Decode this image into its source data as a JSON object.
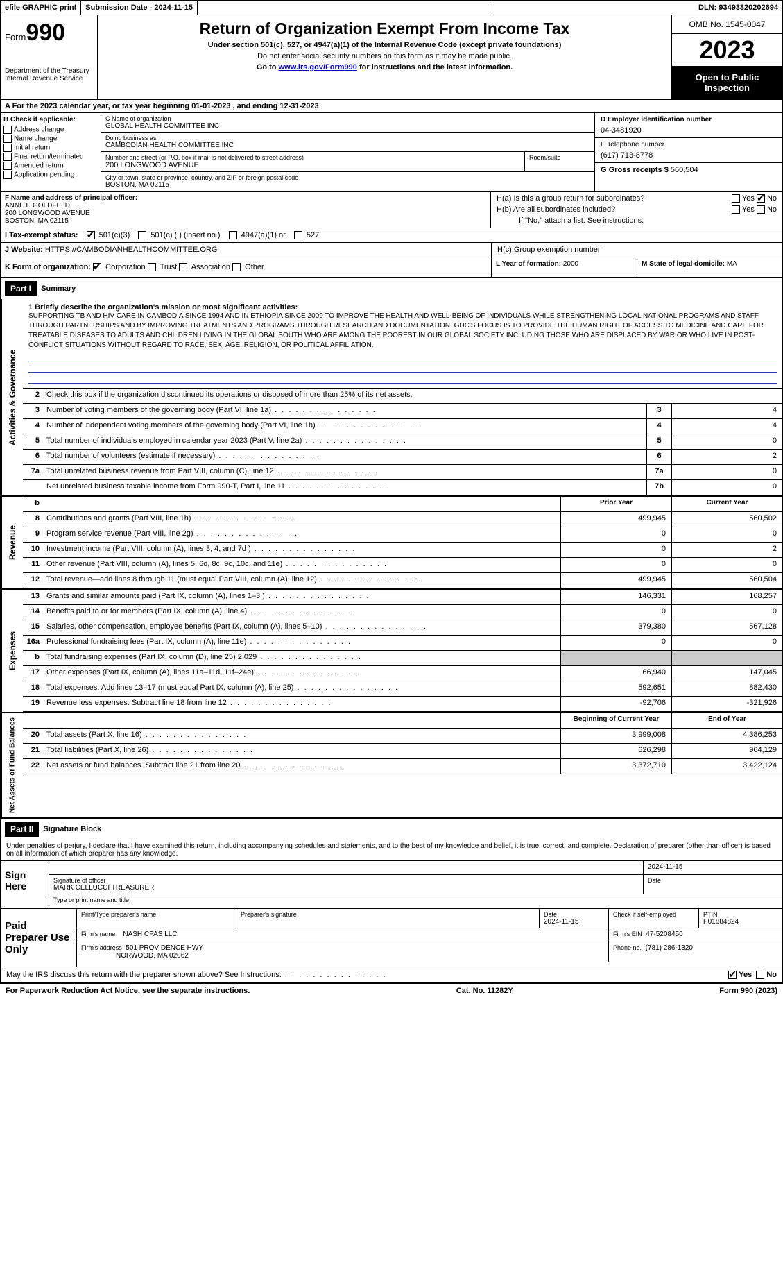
{
  "topbar": {
    "efile": "efile GRAPHIC print",
    "subdate_label": "Submission Date - ",
    "subdate": "2024-11-15",
    "dln_label": "DLN: ",
    "dln": "93493320202694"
  },
  "header": {
    "form_label": "Form",
    "form_num": "990",
    "dept": "Department of the Treasury\nInternal Revenue Service",
    "title": "Return of Organization Exempt From Income Tax",
    "sub": "Under section 501(c), 527, or 4947(a)(1) of the Internal Revenue Code (except private foundations)",
    "ssn": "Do not enter social security numbers on this form as it may be made public.",
    "goto_pre": "Go to ",
    "goto_link": "www.irs.gov/Form990",
    "goto_post": " for instructions and the latest information.",
    "omb": "OMB No. 1545-0047",
    "year": "2023",
    "open": "Open to Public Inspection"
  },
  "rowA": {
    "text": "A For the 2023 calendar year, or tax year beginning 01-01-2023    , and ending 12-31-2023"
  },
  "colB": {
    "label": "B Check if applicable:",
    "opts": [
      "Address change",
      "Name change",
      "Initial return",
      "Final return/terminated",
      "Amended return",
      "Application pending"
    ]
  },
  "colC": {
    "c_label": "C Name of organization",
    "org": "GLOBAL HEALTH COMMITTEE INC",
    "dba_label": "Doing business as",
    "dba": "CAMBODIAN HEALTH COMMITTEE INC",
    "addr_label": "Number and street (or P.O. box if mail is not delivered to street address)",
    "room_label": "Room/suite",
    "street": "200 LONGWOOD AVENUE",
    "city_label": "City or town, state or province, country, and ZIP or foreign postal code",
    "city": "BOSTON, MA  02115"
  },
  "colD": {
    "ein_label": "D Employer identification number",
    "ein": "04-3481920",
    "tel_label": "E Telephone number",
    "tel": "(617) 713-8778",
    "gross_label": "G Gross receipts $ ",
    "gross": "560,504"
  },
  "rowF": {
    "f_label": "F Name and address of principal officer:",
    "name": "ANNE E GOLDFELD",
    "addr1": "200 LONGWOOD AVENUE",
    "addr2": "BOSTON, MA  02115"
  },
  "rowH": {
    "ha": "H(a)  Is this a group return for subordinates?",
    "hb": "H(b)  Are all subordinates included?",
    "hb_note": "If \"No,\" attach a list. See instructions.",
    "hc": "H(c)  Group exemption number",
    "yes": "Yes",
    "no": "No"
  },
  "rowI": {
    "label": "I  Tax-exempt status:",
    "o1": "501(c)(3)",
    "o2": "501(c) (  ) (insert no.)",
    "o3": "4947(a)(1) or",
    "o4": "527"
  },
  "rowJ": {
    "label": "J  Website:",
    "url": "HTTPS://CAMBODIANHEALTHCOMMITTEE.ORG"
  },
  "rowK": {
    "label": "K Form of organization:",
    "opts": [
      "Corporation",
      "Trust",
      "Association",
      "Other"
    ],
    "l_label": "L Year of formation: ",
    "l_val": "2000",
    "m_label": "M State of legal domicile: ",
    "m_val": "MA"
  },
  "part1": {
    "title": "Part I",
    "subtitle": "Summary",
    "q1_label": "1  Briefly describe the organization's mission or most significant activities:",
    "mission": "SUPPORTING TB AND HIV CARE IN CAMBODIA SINCE 1994 AND IN ETHIOPIA SINCE 2009 TO IMPROVE THE HEALTH AND WELL-BEING OF INDIVIDUALS WHILE STRENGTHENING LOCAL NATIONAL PROGRAMS AND STAFF THROUGH PARTNERSHIPS AND BY IMPROVING TREATMENTS AND PROGRAMS THROUGH RESEARCH AND DOCUMENTATION. GHC'S FOCUS IS TO PROVIDE THE HUMAN RIGHT OF ACCESS TO MEDICINE AND CARE FOR TREATABLE DISEASES TO ADULTS AND CHILDREN LIVING IN THE GLOBAL SOUTH WHO ARE AMONG THE POOREST IN OUR GLOBAL SOCIETY INCLUDING THOSE WHO ARE DISPLACED BY WAR OR WHO LIVE IN POST-CONFLICT SITUATIONS WITHOUT REGARD TO RACE, SEX, AGE, RELIGION, OR POLITICAL AFFILIATION.",
    "q2": "Check this box       if the organization discontinued its operations or disposed of more than 25% of its net assets.",
    "rows_gov": [
      {
        "n": "3",
        "d": "Number of voting members of the governing body (Part VI, line 1a)",
        "b": "3",
        "v": "4"
      },
      {
        "n": "4",
        "d": "Number of independent voting members of the governing body (Part VI, line 1b)",
        "b": "4",
        "v": "4"
      },
      {
        "n": "5",
        "d": "Total number of individuals employed in calendar year 2023 (Part V, line 2a)",
        "b": "5",
        "v": "0"
      },
      {
        "n": "6",
        "d": "Total number of volunteers (estimate if necessary)",
        "b": "6",
        "v": "2"
      },
      {
        "n": "7a",
        "d": "Total unrelated business revenue from Part VIII, column (C), line 12",
        "b": "7a",
        "v": "0"
      },
      {
        "n": "",
        "d": "Net unrelated business taxable income from Form 990-T, Part I, line 11",
        "b": "7b",
        "v": "0"
      }
    ],
    "col_prior": "Prior Year",
    "col_current": "Current Year",
    "rows_rev": [
      {
        "n": "8",
        "d": "Contributions and grants (Part VIII, line 1h)",
        "p": "499,945",
        "c": "560,502"
      },
      {
        "n": "9",
        "d": "Program service revenue (Part VIII, line 2g)",
        "p": "0",
        "c": "0"
      },
      {
        "n": "10",
        "d": "Investment income (Part VIII, column (A), lines 3, 4, and 7d )",
        "p": "0",
        "c": "2"
      },
      {
        "n": "11",
        "d": "Other revenue (Part VIII, column (A), lines 5, 6d, 8c, 9c, 10c, and 11e)",
        "p": "0",
        "c": "0"
      },
      {
        "n": "12",
        "d": "Total revenue—add lines 8 through 11 (must equal Part VIII, column (A), line 12)",
        "p": "499,945",
        "c": "560,504"
      }
    ],
    "rows_exp": [
      {
        "n": "13",
        "d": "Grants and similar amounts paid (Part IX, column (A), lines 1–3 )",
        "p": "146,331",
        "c": "168,257"
      },
      {
        "n": "14",
        "d": "Benefits paid to or for members (Part IX, column (A), line 4)",
        "p": "0",
        "c": "0"
      },
      {
        "n": "15",
        "d": "Salaries, other compensation, employee benefits (Part IX, column (A), lines 5–10)",
        "p": "379,380",
        "c": "567,128"
      },
      {
        "n": "16a",
        "d": "Professional fundraising fees (Part IX, column (A), line 11e)",
        "p": "0",
        "c": "0"
      },
      {
        "n": "b",
        "d": "Total fundraising expenses (Part IX, column (D), line 25) 2,029",
        "p": "",
        "c": "",
        "shaded": true
      },
      {
        "n": "17",
        "d": "Other expenses (Part IX, column (A), lines 11a–11d, 11f–24e)",
        "p": "66,940",
        "c": "147,045"
      },
      {
        "n": "18",
        "d": "Total expenses. Add lines 13–17 (must equal Part IX, column (A), line 25)",
        "p": "592,651",
        "c": "882,430"
      },
      {
        "n": "19",
        "d": "Revenue less expenses. Subtract line 18 from line 12",
        "p": "-92,706",
        "c": "-321,926"
      }
    ],
    "col_begin": "Beginning of Current Year",
    "col_end": "End of Year",
    "rows_net": [
      {
        "n": "20",
        "d": "Total assets (Part X, line 16)",
        "p": "3,999,008",
        "c": "4,386,253"
      },
      {
        "n": "21",
        "d": "Total liabilities (Part X, line 26)",
        "p": "626,298",
        "c": "964,129"
      },
      {
        "n": "22",
        "d": "Net assets or fund balances. Subtract line 21 from line 20",
        "p": "3,372,710",
        "c": "3,422,124"
      }
    ],
    "side_gov": "Activities & Governance",
    "side_rev": "Revenue",
    "side_exp": "Expenses",
    "side_net": "Net Assets or Fund Balances"
  },
  "part2": {
    "title": "Part II",
    "subtitle": "Signature Block",
    "perjury": "Under penalties of perjury, I declare that I have examined this return, including accompanying schedules and statements, and to the best of my knowledge and belief, it is true, correct, and complete. Declaration of preparer (other than officer) is based on all information of which preparer has any knowledge.",
    "sign_here": "Sign Here",
    "sig_officer_lbl": "Signature of officer",
    "sig_date": "2024-11-15",
    "date_lbl": "Date",
    "officer_name": "MARK CELLUCCI TREASURER",
    "type_lbl": "Type or print name and title",
    "paid": "Paid Preparer Use Only",
    "prep_name_lbl": "Print/Type preparer's name",
    "prep_sig_lbl": "Preparer's signature",
    "prep_date_lbl": "Date",
    "prep_date": "2024-11-15",
    "self_emp": "Check       if self-employed",
    "ptin_lbl": "PTIN",
    "ptin": "P01884824",
    "firm_name_lbl": "Firm's name",
    "firm_name": "NASH CPAS LLC",
    "firm_ein_lbl": "Firm's EIN",
    "firm_ein": "47-5208450",
    "firm_addr_lbl": "Firm's address",
    "firm_addr": "501 PROVIDENCE HWY",
    "firm_city": "NORWOOD, MA  02062",
    "phone_lbl": "Phone no.",
    "phone": "(781) 286-1320"
  },
  "footer": {
    "discuss": "May the IRS discuss this return with the preparer shown above? See Instructions.",
    "yes": "Yes",
    "no": "No",
    "paperwork": "For Paperwork Reduction Act Notice, see the separate instructions.",
    "cat": "Cat. No. 11282Y",
    "form": "Form 990 (2023)"
  }
}
